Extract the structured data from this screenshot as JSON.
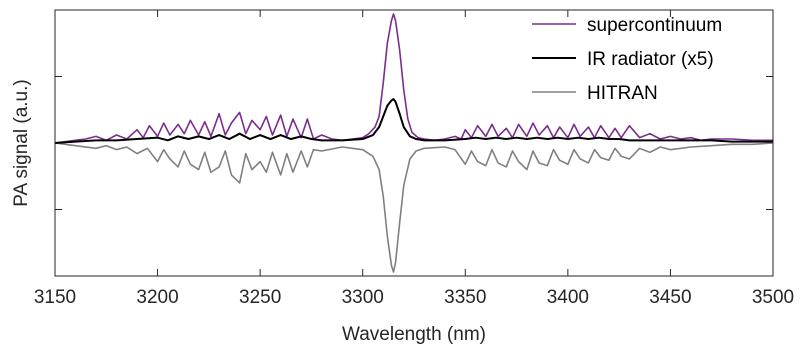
{
  "chart_data": {
    "type": "line",
    "xlabel": "Wavelength (nm)",
    "ylabel": "PA signal (a.u.)",
    "xlim": [
      3150,
      3500
    ],
    "ylim": [
      -1.0,
      1.0
    ],
    "xticks": [
      3150,
      3200,
      3250,
      3300,
      3350,
      3400,
      3450,
      3500
    ],
    "yticks": [
      -0.5,
      0.5
    ],
    "show_y_tick_labels": false,
    "grid": false,
    "legend_position": "top-right",
    "series": [
      {
        "name": "supercontinuum",
        "color": "#7b2d8e",
        "x": [
          3150,
          3160,
          3165,
          3170,
          3175,
          3180,
          3185,
          3190,
          3193,
          3196,
          3200,
          3203,
          3206,
          3210,
          3213,
          3216,
          3220,
          3223,
          3226,
          3230,
          3233,
          3236,
          3240,
          3243,
          3246,
          3250,
          3253,
          3256,
          3260,
          3263,
          3266,
          3270,
          3273,
          3276,
          3280,
          3285,
          3290,
          3295,
          3300,
          3303,
          3306,
          3308,
          3310,
          3312,
          3314,
          3315,
          3316,
          3318,
          3320,
          3322,
          3324,
          3327,
          3330,
          3335,
          3340,
          3345,
          3348,
          3350,
          3353,
          3356,
          3360,
          3363,
          3366,
          3370,
          3373,
          3376,
          3380,
          3383,
          3386,
          3390,
          3393,
          3396,
          3400,
          3403,
          3406,
          3410,
          3413,
          3416,
          3420,
          3423,
          3426,
          3430,
          3435,
          3440,
          3445,
          3450,
          3455,
          3460,
          3465,
          3470,
          3480,
          3490,
          3500
        ],
        "y": [
          0.0,
          0.02,
          0.03,
          0.05,
          0.02,
          0.06,
          0.03,
          0.1,
          0.04,
          0.13,
          0.05,
          0.15,
          0.06,
          0.14,
          0.07,
          0.17,
          0.06,
          0.16,
          0.05,
          0.22,
          0.06,
          0.15,
          0.23,
          0.07,
          0.17,
          0.1,
          0.2,
          0.06,
          0.21,
          0.05,
          0.18,
          0.04,
          0.18,
          0.03,
          0.06,
          0.03,
          0.02,
          0.03,
          0.04,
          0.07,
          0.12,
          0.2,
          0.45,
          0.75,
          0.92,
          0.97,
          0.92,
          0.7,
          0.4,
          0.18,
          0.08,
          0.04,
          0.03,
          0.02,
          0.03,
          0.05,
          0.03,
          0.1,
          0.04,
          0.13,
          0.05,
          0.14,
          0.05,
          0.11,
          0.04,
          0.14,
          0.05,
          0.15,
          0.06,
          0.13,
          0.04,
          0.12,
          0.04,
          0.14,
          0.05,
          0.12,
          0.04,
          0.13,
          0.04,
          0.11,
          0.04,
          0.13,
          0.04,
          0.07,
          0.03,
          0.05,
          0.03,
          0.04,
          0.02,
          0.03,
          0.03,
          0.02,
          0.02
        ]
      },
      {
        "name": "IR radiator (x5)",
        "color": "#000000",
        "x": [
          3150,
          3160,
          3170,
          3180,
          3190,
          3200,
          3205,
          3210,
          3215,
          3220,
          3225,
          3230,
          3235,
          3240,
          3245,
          3250,
          3255,
          3260,
          3265,
          3270,
          3275,
          3280,
          3290,
          3300,
          3305,
          3308,
          3310,
          3312,
          3314,
          3315,
          3316,
          3318,
          3320,
          3323,
          3326,
          3330,
          3340,
          3350,
          3355,
          3360,
          3365,
          3370,
          3375,
          3380,
          3385,
          3390,
          3395,
          3400,
          3405,
          3410,
          3415,
          3420,
          3425,
          3430,
          3440,
          3450,
          3460,
          3470,
          3480,
          3490,
          3500
        ],
        "y": [
          0.0,
          0.01,
          0.02,
          0.02,
          0.03,
          0.04,
          0.02,
          0.05,
          0.03,
          0.05,
          0.03,
          0.06,
          0.03,
          0.07,
          0.03,
          0.06,
          0.03,
          0.06,
          0.03,
          0.05,
          0.03,
          0.02,
          0.02,
          0.03,
          0.06,
          0.12,
          0.2,
          0.28,
          0.32,
          0.33,
          0.31,
          0.22,
          0.12,
          0.05,
          0.03,
          0.02,
          0.02,
          0.03,
          0.04,
          0.03,
          0.04,
          0.03,
          0.04,
          0.03,
          0.04,
          0.03,
          0.04,
          0.03,
          0.04,
          0.03,
          0.04,
          0.03,
          0.03,
          0.02,
          0.02,
          0.02,
          0.02,
          0.02,
          0.01,
          0.01,
          0.01
        ]
      },
      {
        "name": "HITRAN",
        "color": "#808080",
        "x": [
          3150,
          3160,
          3170,
          3175,
          3180,
          3185,
          3190,
          3195,
          3200,
          3203,
          3206,
          3210,
          3213,
          3216,
          3220,
          3223,
          3226,
          3230,
          3233,
          3236,
          3240,
          3243,
          3246,
          3250,
          3253,
          3256,
          3260,
          3263,
          3266,
          3270,
          3273,
          3276,
          3280,
          3290,
          3300,
          3305,
          3308,
          3310,
          3312,
          3314,
          3315,
          3316,
          3318,
          3320,
          3323,
          3326,
          3330,
          3340,
          3345,
          3350,
          3353,
          3356,
          3360,
          3363,
          3366,
          3370,
          3373,
          3376,
          3380,
          3383,
          3386,
          3390,
          3393,
          3396,
          3400,
          3403,
          3406,
          3410,
          3413,
          3416,
          3420,
          3423,
          3426,
          3430,
          3435,
          3440,
          3445,
          3450,
          3460,
          3470,
          3480,
          3490,
          3500
        ],
        "y": [
          0.0,
          -0.02,
          -0.04,
          -0.02,
          -0.05,
          -0.03,
          -0.08,
          -0.04,
          -0.14,
          -0.05,
          -0.12,
          -0.18,
          -0.06,
          -0.16,
          -0.2,
          -0.07,
          -0.22,
          -0.18,
          -0.06,
          -0.24,
          -0.3,
          -0.08,
          -0.2,
          -0.14,
          -0.22,
          -0.07,
          -0.24,
          -0.08,
          -0.22,
          -0.06,
          -0.18,
          -0.05,
          -0.06,
          -0.03,
          -0.05,
          -0.1,
          -0.2,
          -0.4,
          -0.7,
          -0.92,
          -0.97,
          -0.9,
          -0.6,
          -0.32,
          -0.12,
          -0.06,
          -0.04,
          -0.03,
          -0.05,
          -0.16,
          -0.06,
          -0.14,
          -0.17,
          -0.05,
          -0.15,
          -0.18,
          -0.06,
          -0.14,
          -0.2,
          -0.06,
          -0.15,
          -0.17,
          -0.05,
          -0.13,
          -0.16,
          -0.05,
          -0.12,
          -0.15,
          -0.05,
          -0.11,
          -0.13,
          -0.04,
          -0.1,
          -0.12,
          -0.04,
          -0.07,
          -0.03,
          -0.05,
          -0.03,
          -0.02,
          -0.01,
          -0.01,
          0.0
        ]
      }
    ]
  }
}
